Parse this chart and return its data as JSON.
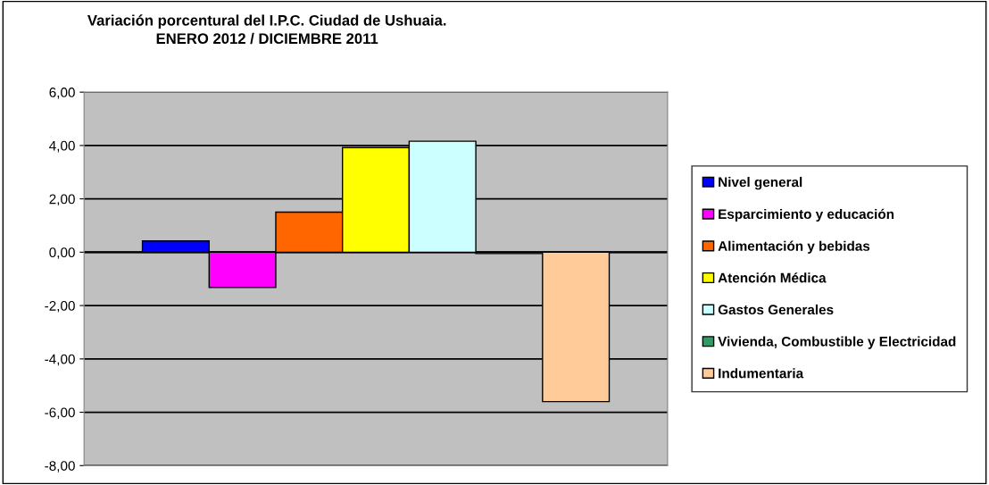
{
  "chart_data": {
    "type": "bar",
    "title": "Variación porcentural del I.P.C. Ciudad de Ushuaia.\nENERO 2012 / DICIEMBRE 2011",
    "categories": [
      null
    ],
    "series": [
      {
        "name": "Nivel general",
        "color": "#0000ff",
        "values": [
          0.42
        ]
      },
      {
        "name": "Esparcimiento y educación",
        "color": "#ff00ff",
        "values": [
          -1.32
        ]
      },
      {
        "name": "Alimentación y bebidas",
        "color": "#ff6600",
        "values": [
          1.5
        ]
      },
      {
        "name": "Atención Médica",
        "color": "#ffff00",
        "values": [
          3.92
        ]
      },
      {
        "name": "Gastos Generales",
        "color": "#ccffff",
        "values": [
          4.16
        ]
      },
      {
        "name": "Vivienda, Combustible y Electricidad",
        "color": "#339966",
        "values": [
          -0.05
        ]
      },
      {
        "name": "Indumentaria",
        "color": "#ffcc99",
        "values": [
          -5.6
        ]
      }
    ],
    "ylim": [
      -8,
      6
    ],
    "yticks": [
      {
        "value": -8,
        "label": "-8,00"
      },
      {
        "value": -6,
        "label": "-6,00"
      },
      {
        "value": -4,
        "label": "-4,00"
      },
      {
        "value": -2,
        "label": "-2,00"
      },
      {
        "value": 0,
        "label": "0,00"
      },
      {
        "value": 2,
        "label": "2,00"
      },
      {
        "value": 4,
        "label": "4,00"
      },
      {
        "value": 6,
        "label": "6,00"
      }
    ],
    "grid": "y",
    "legend": "right"
  }
}
